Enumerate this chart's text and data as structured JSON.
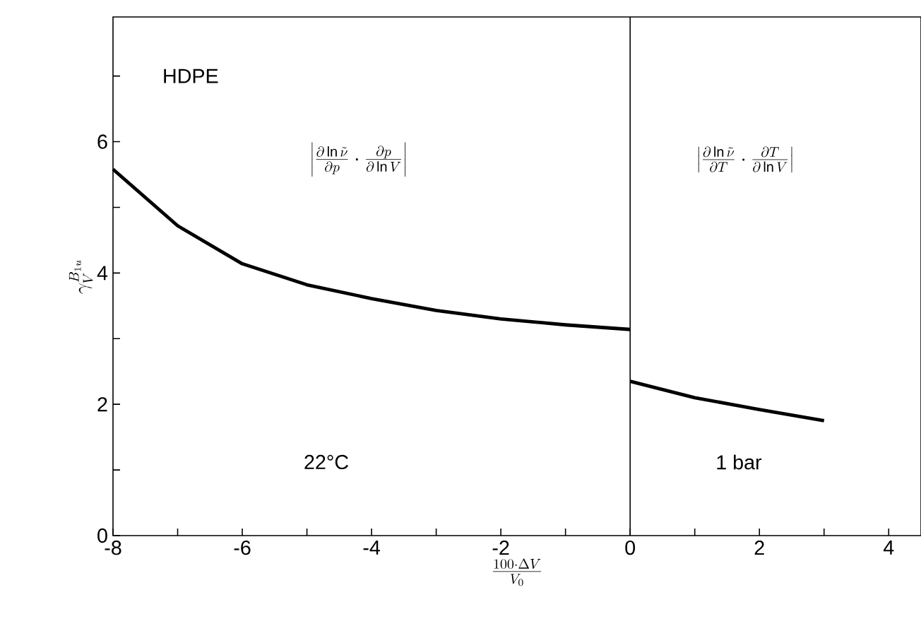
{
  "chart_data": {
    "type": "line",
    "xlabel": "\\frac{100\\cdot\\Delta V}{V_0}",
    "ylabel": "\\gamma_V^{B_{1u}}",
    "annotations": [
      "HDPE",
      "\\left|\\frac{\\partial\\ln\\tilde{\\nu}}{\\partial p}\\cdot\\frac{\\partial p}{\\partial\\ln V}\\right|",
      "22°C",
      "\\left|\\frac{\\partial\\ln\\tilde{\\nu}}{\\partial T}\\cdot\\frac{\\partial T}{\\partial\\ln V}\\right|",
      "1 bar"
    ],
    "series": [
      {
        "color": "#000000",
        "x": [
          -8,
          -7,
          -6,
          -5,
          -4,
          -3,
          -2,
          -1,
          0
        ],
        "values": [
          5.58,
          4.72,
          4.14,
          3.82,
          3.61,
          3.43,
          3.3,
          3.21,
          3.14
        ]
      },
      {
        "color": "#000000",
        "x": [
          0,
          1,
          2,
          3
        ],
        "values": [
          2.35,
          2.1,
          1.92,
          1.75
        ]
      }
    ],
    "ref_lines": [
      {
        "axis": "x",
        "value": 0,
        "color": "#000000"
      }
    ],
    "xlim": [
      -8,
      4.5
    ],
    "ylim": [
      0,
      7.9
    ],
    "xticks": [
      -8,
      {
        "value": -7,
        "label": null
      },
      -6,
      {
        "value": -5,
        "label": null
      },
      -4,
      {
        "value": -3,
        "label": null
      },
      -2,
      {
        "value": -1,
        "label": null
      },
      0,
      {
        "value": 1,
        "label": null
      },
      2,
      {
        "value": 3,
        "label": null
      },
      4
    ],
    "yticks": [
      0,
      {
        "value": 1,
        "label": null
      },
      2,
      {
        "value": 3,
        "label": null
      },
      4,
      {
        "value": 5,
        "label": null
      },
      6,
      {
        "value": 7,
        "label": null
      }
    ],
    "grid": false,
    "marker": "none",
    "line_style": "solid"
  }
}
